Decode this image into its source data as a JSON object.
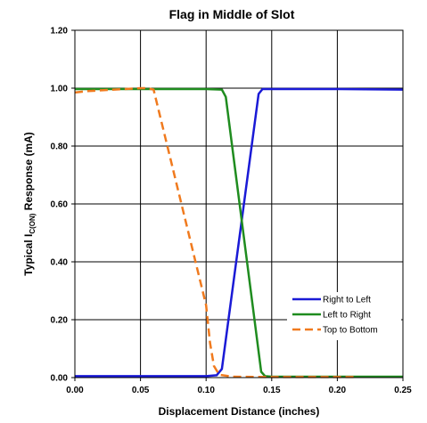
{
  "chart_data": {
    "type": "line",
    "title": "Flag in Middle of Slot",
    "xlabel": "Displacement Distance (inches)",
    "ylabel": {
      "prefix": "Typical I",
      "subscript": "C(ON)",
      "suffix": " Response (mA)"
    },
    "xlim": [
      0,
      0.25
    ],
    "ylim": [
      0,
      1.2
    ],
    "x_ticks": [
      "0.00",
      "0.05",
      "0.10",
      "0.15",
      "0.20",
      "0.25"
    ],
    "x_tick_values": [
      0,
      0.05,
      0.1,
      0.15,
      0.2,
      0.25
    ],
    "y_ticks": [
      "0.00",
      "0.20",
      "0.40",
      "0.60",
      "0.80",
      "1.00",
      "1.20"
    ],
    "y_tick_values": [
      0,
      0.2,
      0.4,
      0.6,
      0.8,
      1.0,
      1.2
    ],
    "grid": true,
    "legend_position": "bottom-right",
    "series": [
      {
        "name": "Right to Left",
        "color": "#1a1ad6",
        "dash": "solid",
        "x": [
          0,
          0.05,
          0.1,
          0.108,
          0.112,
          0.14,
          0.143,
          0.15,
          0.2,
          0.25
        ],
        "y": [
          0.005,
          0.005,
          0.005,
          0.008,
          0.03,
          0.98,
          0.997,
          0.997,
          0.997,
          0.995
        ]
      },
      {
        "name": "Left to Right",
        "color": "#1f8c1f",
        "dash": "solid",
        "x": [
          0,
          0.05,
          0.1,
          0.112,
          0.115,
          0.142,
          0.145,
          0.15,
          0.2,
          0.25
        ],
        "y": [
          0.997,
          0.997,
          0.997,
          0.995,
          0.97,
          0.02,
          0.005,
          0.003,
          0.003,
          0.003
        ]
      },
      {
        "name": "Top to Bottom",
        "color": "#f07a1e",
        "dash": "dashed",
        "x": [
          0,
          0.01,
          0.03,
          0.05,
          0.055,
          0.06,
          0.1,
          0.103,
          0.106,
          0.11,
          0.12,
          0.15,
          0.2,
          0.215
        ],
        "y": [
          0.985,
          0.99,
          0.995,
          1.0,
          1.0,
          0.995,
          0.25,
          0.12,
          0.04,
          0.01,
          0.003,
          0.002,
          0.002,
          0.002
        ]
      }
    ]
  }
}
